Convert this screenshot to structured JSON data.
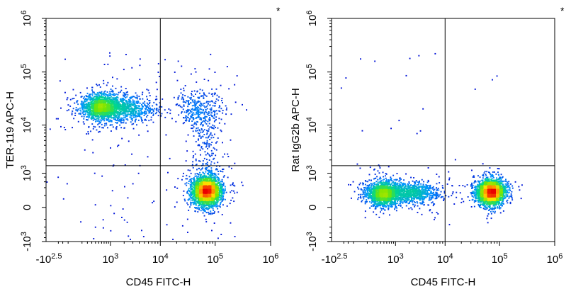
{
  "chart_data": [
    {
      "type": "scatter",
      "subtype": "flow-cytometry-density-dot-plot",
      "marker": "*",
      "xlabel": "CD45 FITC-H",
      "ylabel": "TER-119 APC-H",
      "x_ticks": [
        {
          "base": "-10",
          "exp": "2.5",
          "value": -316
        },
        {
          "base": "10",
          "exp": "3",
          "value": 1000
        },
        {
          "base": "10",
          "exp": "4",
          "value": 10000
        },
        {
          "base": "10",
          "exp": "5",
          "value": 100000
        },
        {
          "base": "10",
          "exp": "6",
          "value": 1000000
        }
      ],
      "y_ticks": [
        {
          "base": "-10",
          "exp": "3",
          "value": -1000
        },
        {
          "base": "0",
          "exp": "",
          "value": 0
        },
        {
          "base": "10",
          "exp": "3",
          "value": 1000
        },
        {
          "base": "10",
          "exp": "4",
          "value": 10000
        },
        {
          "base": "10",
          "exp": "5",
          "value": 100000
        },
        {
          "base": "10",
          "exp": "6",
          "value": 1000000
        }
      ],
      "gates": {
        "x": 10000,
        "y": 1500
      },
      "clusters": [
        {
          "name": "CD45- TER-119+",
          "x_center": 600,
          "y_center": 22000,
          "relative_density": 0.9
        },
        {
          "name": "CD45- TER-119+ tail",
          "x_center": 2500,
          "y_center": 20000,
          "relative_density": 0.5
        },
        {
          "name": "CD45+ TER-119-",
          "x_center": 70000,
          "y_center": 300,
          "relative_density": 1.0
        },
        {
          "name": "CD45+ TER-119+",
          "x_center": 50000,
          "y_center": 20000,
          "relative_density": 0.12
        }
      ]
    },
    {
      "type": "scatter",
      "subtype": "flow-cytometry-density-dot-plot",
      "marker": "*",
      "xlabel": "CD45 FITC-H",
      "ylabel": "Rat IgG2b APC-H",
      "x_ticks": [
        {
          "base": "-10",
          "exp": "2.5",
          "value": -316
        },
        {
          "base": "10",
          "exp": "3",
          "value": 1000
        },
        {
          "base": "10",
          "exp": "4",
          "value": 10000
        },
        {
          "base": "10",
          "exp": "5",
          "value": 100000
        },
        {
          "base": "10",
          "exp": "6",
          "value": 1000000
        }
      ],
      "y_ticks": [
        {
          "base": "-10",
          "exp": "3",
          "value": -1000
        },
        {
          "base": "0",
          "exp": "",
          "value": 0
        },
        {
          "base": "10",
          "exp": "3",
          "value": 1000
        },
        {
          "base": "10",
          "exp": "4",
          "value": 10000
        },
        {
          "base": "10",
          "exp": "5",
          "value": 100000
        },
        {
          "base": "10",
          "exp": "6",
          "value": 1000000
        }
      ],
      "gates": {
        "x": 10000,
        "y": 1500
      },
      "clusters": [
        {
          "name": "CD45- isotype",
          "x_center": 500,
          "y_center": 250,
          "relative_density": 0.8
        },
        {
          "name": "CD45- isotype tail",
          "x_center": 2500,
          "y_center": 250,
          "relative_density": 0.45
        },
        {
          "name": "CD45+ isotype",
          "x_center": 70000,
          "y_center": 280,
          "relative_density": 1.0
        }
      ]
    }
  ]
}
